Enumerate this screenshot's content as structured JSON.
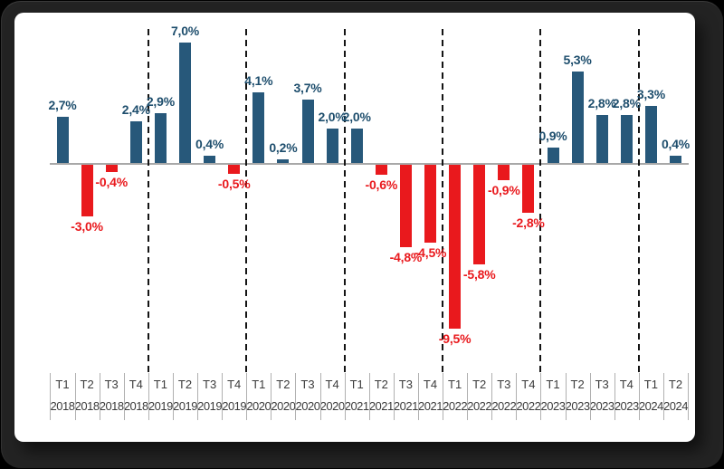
{
  "window": {
    "background_color": "#000000",
    "frame_color": "#232323",
    "panel_color": "#ffffff"
  },
  "chart_data": {
    "type": "bar",
    "title": "",
    "xlabel": "",
    "ylabel": "",
    "ylim": [
      -10,
      7.5
    ],
    "grid": false,
    "legend": "none",
    "categories": [
      {
        "t": "T1",
        "year": "2018"
      },
      {
        "t": "T2",
        "year": "2018"
      },
      {
        "t": "T3",
        "year": "2018"
      },
      {
        "t": "T4",
        "year": "2018"
      },
      {
        "t": "T1",
        "year": "2019"
      },
      {
        "t": "T2",
        "year": "2019"
      },
      {
        "t": "T3",
        "year": "2019"
      },
      {
        "t": "T4",
        "year": "2019"
      },
      {
        "t": "T1",
        "year": "2020"
      },
      {
        "t": "T2",
        "year": "2020"
      },
      {
        "t": "T3",
        "year": "2020"
      },
      {
        "t": "T4",
        "year": "2020"
      },
      {
        "t": "T1",
        "year": "2021"
      },
      {
        "t": "T2",
        "year": "2021"
      },
      {
        "t": "T3",
        "year": "2021"
      },
      {
        "t": "T4",
        "year": "2021"
      },
      {
        "t": "T1",
        "year": "2022"
      },
      {
        "t": "T2",
        "year": "2022"
      },
      {
        "t": "T3",
        "year": "2022"
      },
      {
        "t": "T4",
        "year": "2022"
      },
      {
        "t": "T1",
        "year": "2023"
      },
      {
        "t": "T2",
        "year": "2023"
      },
      {
        "t": "T3",
        "year": "2023"
      },
      {
        "t": "T4",
        "year": "2023"
      },
      {
        "t": "T1",
        "year": "2024"
      },
      {
        "t": "T2",
        "year": "2024"
      }
    ],
    "values": [
      2.7,
      -3.0,
      -0.4,
      2.4,
      2.9,
      7.0,
      0.4,
      -0.5,
      4.1,
      0.2,
      3.7,
      2.0,
      2.0,
      -0.6,
      -4.8,
      -4.5,
      -9.5,
      -5.8,
      -0.9,
      -2.8,
      0.9,
      5.3,
      2.8,
      2.8,
      3.3,
      0.4
    ],
    "labels": [
      "2,7%",
      "-3,0%",
      "-0,4%",
      "2,4%",
      "2,9%",
      "7,0%",
      "0,4%",
      "-0,5%",
      "4,1%",
      "0,2%",
      "3,7%",
      "2,0%",
      "2,0%",
      "-0,6%",
      "-4,8%",
      "-4,5%",
      "-9,5%",
      "-5,8%",
      "-0,9%",
      "-2,8%",
      "0,9%",
      "5,3%",
      "2,8%",
      "2,8%",
      "3,3%",
      "0,4%"
    ],
    "year_separators_after_index": [
      3,
      7,
      11,
      15,
      19,
      23
    ],
    "positive_color": "#27587a",
    "negative_color": "#e9191d",
    "positive_label_color": "#1e4e6d",
    "negative_label_color": "#e9191d",
    "separator_color": "#141414",
    "axis": {
      "tick_color": "#b0b0b0",
      "baseline_color": "#a8a8a8",
      "label_color": "#3b3b3b"
    }
  }
}
